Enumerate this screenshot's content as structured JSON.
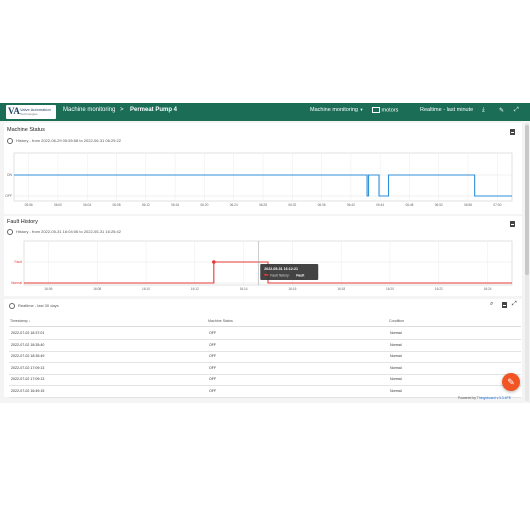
{
  "header": {
    "logo_text": "Valve Automation",
    "logo_subtext": "Technologies",
    "breadcrumb_root": "Machine monitoring",
    "breadcrumb_sep": ">",
    "breadcrumb_current": "Permeat Pump 4",
    "state_selector": "Machine monitoring",
    "entity_alias": "motors",
    "timewindow": "Realtime - last minute",
    "icons": [
      "download-icon",
      "edit-icon",
      "fullscreen-icon"
    ]
  },
  "machine_status": {
    "title": "Machine Status",
    "subtitle": "History - from 2022-06-29 05:55:58 to 2022-06-31 06:29:22",
    "chart_data": {
      "type": "line",
      "title": "Machine Status",
      "y_labels": [
        "ON",
        "OFF"
      ],
      "x_ticks": [
        "05:56",
        "06:00",
        "06:04",
        "06:08",
        "06:12",
        "06:16",
        "06:20",
        "06:24",
        "06:28",
        "06:32",
        "06:36",
        "06:40",
        "06:44",
        "06:48",
        "06:52",
        "06:56",
        "07:00"
      ],
      "series": [
        {
          "color": "#2f8fd8",
          "x": [
            0,
            0.709,
            0.709,
            0.712,
            0.712,
            0.733,
            0.733,
            0.752,
            0.752,
            0.925,
            0.925,
            1.0
          ],
          "y": [
            1,
            1,
            0,
            0,
            1,
            1,
            0,
            0,
            1,
            1,
            0,
            0
          ],
          "segments_end_on": [
            [
              0,
              0.709
            ],
            [
              0.733,
              0.752
            ],
            [
              0.925,
              1
            ]
          ]
        }
      ]
    }
  },
  "fault_history": {
    "title": "Fault History",
    "subtitle": "History - from 2022-05-31 16:04:06 to 2022-05-31 16:25:42",
    "chart_data": {
      "type": "line",
      "title": "Fault History",
      "y_labels": [
        "Fault",
        "Normal"
      ],
      "x_ticks": [
        "16:06",
        "16:08",
        "16:10",
        "16:12",
        "16:14",
        "16:16",
        "16:18",
        "16:20",
        "16:22",
        "16:24"
      ],
      "series": [
        {
          "name": "Fault history",
          "color": "#e53935",
          "x": [
            0,
            0.389,
            0.389,
            0.5,
            0.5,
            1.0
          ],
          "y": [
            0,
            0,
            1,
            1,
            0,
            0
          ]
        }
      ],
      "tooltip": {
        "timestamp": "2022-05-31 16:12:21",
        "series_label": "Fault history:",
        "value": "Fault"
      }
    }
  },
  "table": {
    "subtitle": "Realtime - last 30 days",
    "columns": [
      "Timestamp",
      "Machine Status",
      "Condition"
    ],
    "sort_arrow": "↓",
    "rows": [
      {
        "timestamp": "2022-07-02 18:37:01",
        "status": "OFF",
        "condition": "Normal"
      },
      {
        "timestamp": "2022-07-02 18:35:40",
        "status": "OFF",
        "condition": "Normal"
      },
      {
        "timestamp": "2022-07-02 18:35:49",
        "status": "OFF",
        "condition": "Normal"
      },
      {
        "timestamp": "2022-07-02 17:09:13",
        "status": "OFF",
        "condition": "Normal"
      },
      {
        "timestamp": "2022-07-02 17:09:13",
        "status": "OFF",
        "condition": "Normal"
      },
      {
        "timestamp": "2022-07-02 16:49:15",
        "status": "OFF",
        "condition": "Normal"
      }
    ]
  },
  "footer": {
    "powered_prefix": "Powered by",
    "powered_brand": "Thingsboard v.3.3.4PE"
  },
  "colors": {
    "header": "#1b6e55",
    "status_line": "#2f8fd8",
    "fault_line": "#e53935",
    "fab": "#f05523"
  }
}
